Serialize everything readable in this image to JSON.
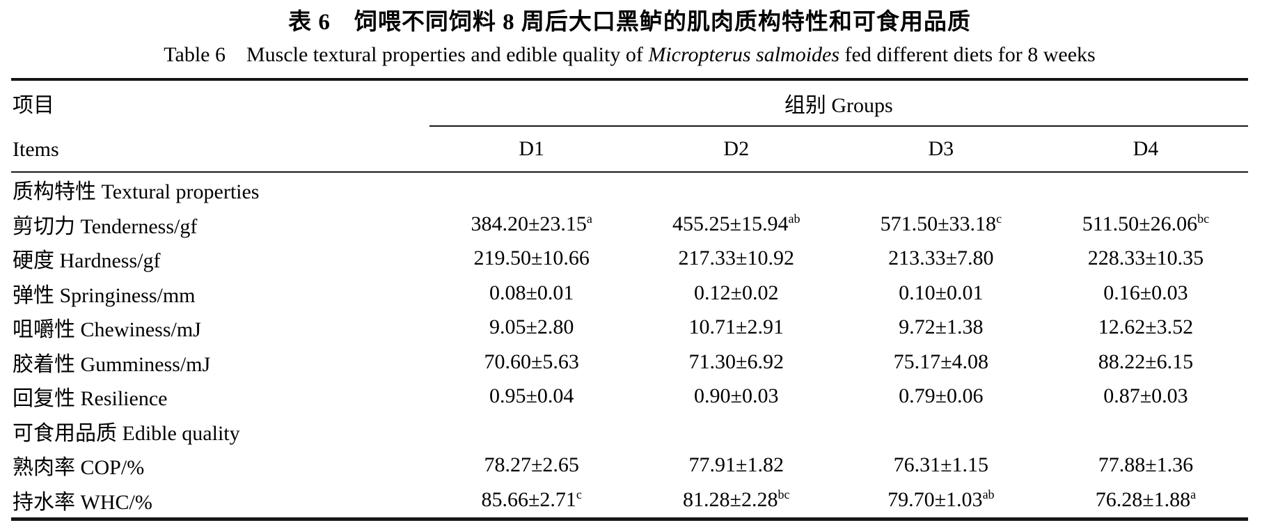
{
  "page": {
    "title_cn": "表 6　饲喂不同饲料 8 周后大口黑鲈的肌肉质构特性和可食用品质",
    "title_en": {
      "prefix": "Table 6　Muscle textural properties and edible quality of ",
      "species": "Micropterus salmoides",
      "suffix": " fed different diets for 8 weeks"
    }
  },
  "table": {
    "header": {
      "items_cn": "项目",
      "items_en": "Items",
      "groups_label": "组别 Groups",
      "group_columns": [
        "D1",
        "D2",
        "D3",
        "D4"
      ]
    },
    "sections": [
      {
        "section_label": "质构特性 Textural properties",
        "rows": [
          {
            "label": "剪切力 Tenderness/gf",
            "values": [
              {
                "v": "384.20±23.15",
                "sup": "a"
              },
              {
                "v": "455.25±15.94",
                "sup": "ab"
              },
              {
                "v": "571.50±33.18",
                "sup": "c"
              },
              {
                "v": "511.50±26.06",
                "sup": "bc"
              }
            ]
          },
          {
            "label": "硬度 Hardness/gf",
            "values": [
              {
                "v": "219.50±10.66",
                "sup": ""
              },
              {
                "v": "217.33±10.92",
                "sup": ""
              },
              {
                "v": "213.33±7.80",
                "sup": ""
              },
              {
                "v": "228.33±10.35",
                "sup": ""
              }
            ]
          },
          {
            "label": "弹性 Springiness/mm",
            "values": [
              {
                "v": "0.08±0.01",
                "sup": ""
              },
              {
                "v": "0.12±0.02",
                "sup": ""
              },
              {
                "v": "0.10±0.01",
                "sup": ""
              },
              {
                "v": "0.16±0.03",
                "sup": ""
              }
            ]
          },
          {
            "label": "咀嚼性 Chewiness/mJ",
            "values": [
              {
                "v": "9.05±2.80",
                "sup": ""
              },
              {
                "v": "10.71±2.91",
                "sup": ""
              },
              {
                "v": "9.72±1.38",
                "sup": ""
              },
              {
                "v": "12.62±3.52",
                "sup": ""
              }
            ]
          },
          {
            "label": "胶着性 Gumminess/mJ",
            "values": [
              {
                "v": "70.60±5.63",
                "sup": ""
              },
              {
                "v": "71.30±6.92",
                "sup": ""
              },
              {
                "v": "75.17±4.08",
                "sup": ""
              },
              {
                "v": "88.22±6.15",
                "sup": ""
              }
            ]
          },
          {
            "label": "回复性 Resilience",
            "values": [
              {
                "v": "0.95±0.04",
                "sup": ""
              },
              {
                "v": "0.90±0.03",
                "sup": ""
              },
              {
                "v": "0.79±0.06",
                "sup": ""
              },
              {
                "v": "0.87±0.03",
                "sup": ""
              }
            ]
          }
        ]
      },
      {
        "section_label": "可食用品质 Edible quality",
        "rows": [
          {
            "label": "熟肉率 COP/%",
            "values": [
              {
                "v": "78.27±2.65",
                "sup": ""
              },
              {
                "v": "77.91±1.82",
                "sup": ""
              },
              {
                "v": "76.31±1.15",
                "sup": ""
              },
              {
                "v": "77.88±1.36",
                "sup": ""
              }
            ]
          },
          {
            "label": "持水率 WHC/%",
            "values": [
              {
                "v": "85.66±2.71",
                "sup": "c"
              },
              {
                "v": "81.28±2.28",
                "sup": "bc"
              },
              {
                "v": "79.70±1.03",
                "sup": "ab"
              },
              {
                "v": "76.28±1.88",
                "sup": "a"
              }
            ]
          }
        ]
      }
    ]
  }
}
